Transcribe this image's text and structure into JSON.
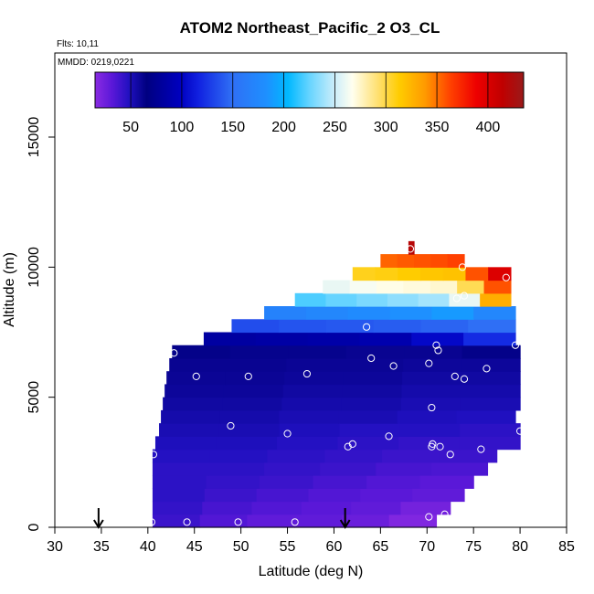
{
  "chart_data": {
    "type": "heatmap",
    "title": "ATOM2 Northeast_Pacific_2 O3_CL",
    "flights_note": "Flts: 10,11",
    "dates_note": "MMDD: 0219,0221",
    "xlabel": "Latitude (deg N)",
    "ylabel": "Altitude (m)",
    "xlim": [
      30,
      85
    ],
    "ylim": [
      0,
      17500
    ],
    "xticks": [
      "30",
      "35",
      "40",
      "45",
      "50",
      "55",
      "60",
      "65",
      "70",
      "75",
      "80",
      "85"
    ],
    "yticks": [
      "0",
      "5000",
      "10000",
      "15000"
    ],
    "ytick_values": [
      0,
      5000,
      10000,
      15000
    ],
    "colorbar": {
      "min": 15,
      "max": 435,
      "ticks": [
        "50",
        "100",
        "150",
        "200",
        "250",
        "300",
        "350",
        "400"
      ],
      "tick_values": [
        50,
        100,
        150,
        200,
        250,
        300,
        350,
        400
      ],
      "divider_values": [
        50,
        100,
        150,
        200,
        250,
        300,
        350,
        400
      ]
    },
    "arrows_latitude": [
      34.7,
      61.2
    ],
    "layers": [
      {
        "y0": 0,
        "y1": 500,
        "x0": 40.5,
        "x1": 71.0,
        "value": [
          38,
          32,
          28,
          28,
          25,
          18
        ]
      },
      {
        "y0": 500,
        "y1": 1000,
        "x0": 40.5,
        "x1": 72.5,
        "value": [
          40,
          35,
          32,
          30,
          28,
          22
        ]
      },
      {
        "y0": 1000,
        "y1": 1500,
        "x0": 40.5,
        "x1": 74.0,
        "value": [
          42,
          38,
          35,
          32,
          30,
          28
        ]
      },
      {
        "y0": 1500,
        "y1": 2000,
        "x0": 40.5,
        "x1": 75.0,
        "value": [
          42,
          40,
          38,
          35,
          32,
          30
        ]
      },
      {
        "y0": 2000,
        "y1": 2500,
        "x0": 40.5,
        "x1": 76.5,
        "value": [
          42,
          42,
          40,
          38,
          35,
          34
        ]
      },
      {
        "y0": 2500,
        "y1": 3000,
        "x0": 40.5,
        "x1": 77.5,
        "value": [
          44,
          44,
          42,
          40,
          38,
          38
        ]
      },
      {
        "y0": 3000,
        "y1": 3500,
        "x0": 40.8,
        "x1": 80.0,
        "value": [
          46,
          46,
          44,
          42,
          40,
          40
        ]
      },
      {
        "y0": 3500,
        "y1": 4000,
        "x0": 41.2,
        "x1": 80.0,
        "value": [
          48,
          48,
          46,
          44,
          44,
          42
        ]
      },
      {
        "y0": 4000,
        "y1": 4500,
        "x0": 41.4,
        "x1": 79.5,
        "value": [
          50,
          50,
          48,
          48,
          46,
          45
        ]
      },
      {
        "y0": 4500,
        "y1": 5000,
        "x0": 41.6,
        "x1": 80.0,
        "value": [
          52,
          52,
          50,
          50,
          48,
          48
        ]
      },
      {
        "y0": 5000,
        "y1": 5500,
        "x0": 41.8,
        "x1": 80.0,
        "value": [
          54,
          54,
          52,
          52,
          50,
          50
        ]
      },
      {
        "y0": 5500,
        "y1": 6000,
        "x0": 42.0,
        "x1": 80.0,
        "value": [
          55,
          55,
          54,
          54,
          52,
          52
        ]
      },
      {
        "y0": 6000,
        "y1": 6500,
        "x0": 42.3,
        "x1": 80.0,
        "value": [
          56,
          56,
          55,
          55,
          54,
          54
        ]
      },
      {
        "y0": 6500,
        "y1": 7000,
        "x0": 42.6,
        "x1": 80.0,
        "value": [
          58,
          57,
          57,
          56,
          56,
          58
        ]
      },
      {
        "y0": 7000,
        "y1": 7500,
        "x0": 46.0,
        "x1": 79.5,
        "value": [
          78,
          80,
          82,
          85,
          100,
          120
        ]
      },
      {
        "y0": 7500,
        "y1": 8000,
        "x0": 49.0,
        "x1": 79.5,
        "value": [
          135,
          138,
          140,
          142,
          145,
          150
        ]
      },
      {
        "y0": 8000,
        "y1": 8500,
        "x0": 52.5,
        "x1": 79.5,
        "value": [
          170,
          175,
          180,
          185,
          190,
          175
        ]
      },
      {
        "y0": 8500,
        "y1": 9000,
        "x0": 55.8,
        "x1": 79.0,
        "value": [
          220,
          225,
          230,
          235,
          240,
          260,
          330
        ]
      },
      {
        "y0": 9000,
        "y1": 9500,
        "x0": 58.8,
        "x1": 79.0,
        "value": [
          260,
          265,
          270,
          272,
          275,
          300,
          360
        ]
      },
      {
        "y0": 9500,
        "y1": 10000,
        "x0": 62.0,
        "x1": 79.0,
        "value": [
          310,
          312,
          315,
          318,
          320,
          360,
          400
        ]
      },
      {
        "y0": 10000,
        "y1": 10500,
        "x0": 65.0,
        "x1": 74.0,
        "value": [
          355,
          358,
          360,
          362,
          365
        ]
      },
      {
        "y0": 10500,
        "y1": 11000,
        "x0": 68.0,
        "x1": 68.6,
        "value": [
          420
        ]
      }
    ],
    "points": [
      [
        40.4,
        200
      ],
      [
        44.2,
        200
      ],
      [
        49.7,
        200
      ],
      [
        55.8,
        200
      ],
      [
        70.2,
        400
      ],
      [
        71.5,
        100
      ],
      [
        71.9,
        500
      ],
      [
        40.6,
        2800
      ],
      [
        61.5,
        3100
      ],
      [
        62.0,
        3200
      ],
      [
        65.9,
        3500
      ],
      [
        70.5,
        3100
      ],
      [
        70.6,
        3200
      ],
      [
        71.4,
        3100
      ],
      [
        72.5,
        2800
      ],
      [
        75.8,
        3000
      ],
      [
        80.0,
        3700
      ],
      [
        48.9,
        3900
      ],
      [
        55.0,
        3600
      ],
      [
        70.5,
        4600
      ],
      [
        45.2,
        5800
      ],
      [
        50.8,
        5800
      ],
      [
        57.1,
        5900
      ],
      [
        66.4,
        6200
      ],
      [
        70.2,
        6300
      ],
      [
        73.0,
        5800
      ],
      [
        74.0,
        5700
      ],
      [
        76.4,
        6100
      ],
      [
        42.8,
        6700
      ],
      [
        64.0,
        6500
      ],
      [
        71.0,
        7000
      ],
      [
        71.2,
        6800
      ],
      [
        79.5,
        7000
      ],
      [
        63.5,
        7700
      ],
      [
        73.2,
        8800
      ],
      [
        74.0,
        8900
      ],
      [
        73.8,
        10000
      ],
      [
        78.5,
        9600
      ],
      [
        68.2,
        10700
      ]
    ]
  }
}
